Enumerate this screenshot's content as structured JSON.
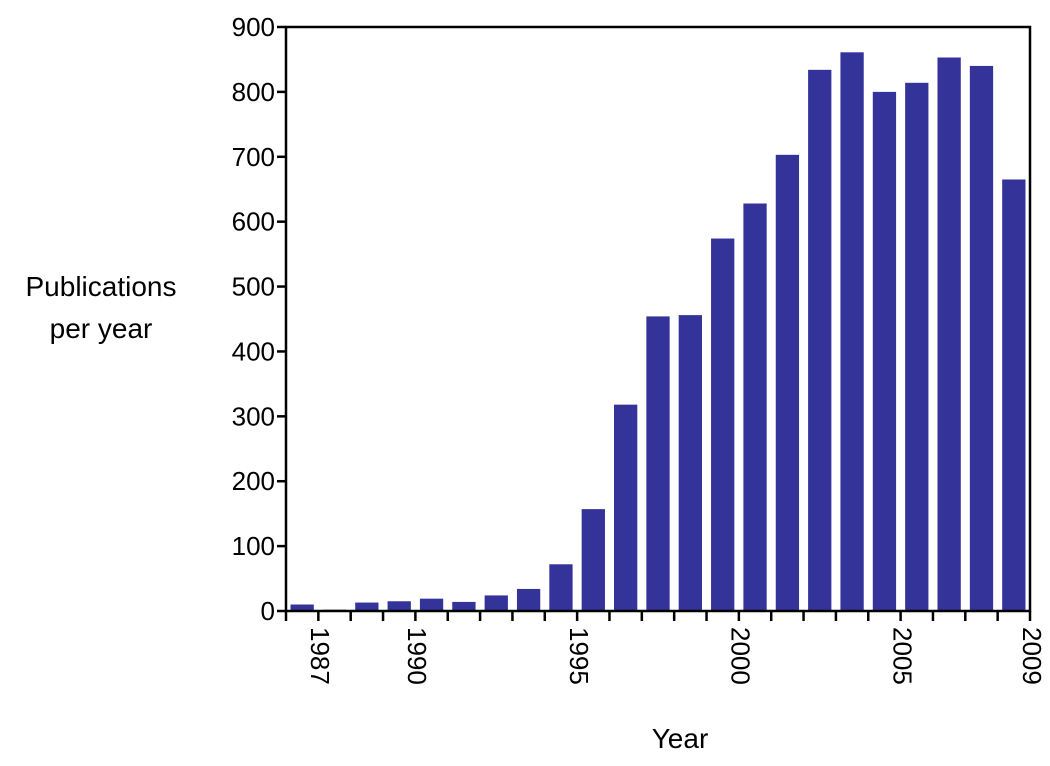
{
  "chart_data": {
    "type": "bar",
    "title": "",
    "xlabel": "Year",
    "ylabel_lines": [
      "Publications",
      "per year"
    ],
    "categories": [
      "1987",
      "1988",
      "1989",
      "1990",
      "1991",
      "1992",
      "1993",
      "1994",
      "1995",
      "1996",
      "1997",
      "1998",
      "1999",
      "2000",
      "2001",
      "2002",
      "2003",
      "2004",
      "2005",
      "2006",
      "2007",
      "2008",
      "2009"
    ],
    "values": [
      10,
      2,
      13,
      15,
      19,
      14,
      24,
      34,
      72,
      157,
      318,
      454,
      456,
      574,
      628,
      703,
      834,
      861,
      800,
      814,
      853,
      840,
      665
    ],
    "xtick_labels": [
      "1987",
      "1990",
      "1995",
      "2000",
      "2005",
      "2009"
    ],
    "ylim": [
      0,
      900
    ],
    "yticks": [
      0,
      100,
      200,
      300,
      400,
      500,
      600,
      700,
      800,
      900
    ],
    "bar_color": "#333399",
    "grid": false,
    "legend": "none"
  }
}
